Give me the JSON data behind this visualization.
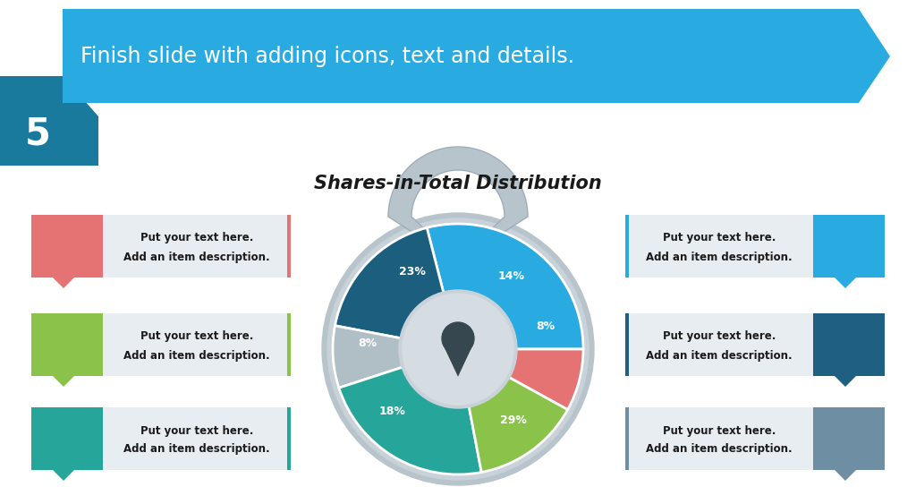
{
  "title": "Finish slide with adding icons, text and details.",
  "step_number": "5",
  "chart_title": "Shares-in-Total Distribution",
  "banner_color": "#29ABE2",
  "banner_dark_color": "#1A7A9E",
  "background_color": "#FFFFFF",
  "pie_values": [
    29,
    18,
    8,
    23,
    14,
    8
  ],
  "pie_colors": [
    "#29ABE2",
    "#1B5E7E",
    "#B0BEC5",
    "#26A69A",
    "#8BC34A",
    "#E57373"
  ],
  "pie_labels": [
    "29%",
    "18%",
    "8%",
    "23%",
    "14%",
    "8%"
  ],
  "lock_body_color": "#B0BEC5",
  "lock_inner_color": "#CFD8DC",
  "keyhole_color": "#37474F",
  "left_items": [
    {
      "icon_color": "#E57373",
      "text1": "Put your text here.",
      "text2": "Add an item description."
    },
    {
      "icon_color": "#8BC34A",
      "text1": "Put your text here.",
      "text2": "Add an item description."
    },
    {
      "icon_color": "#26A69A",
      "text1": "Put your text here.",
      "text2": "Add an item description."
    }
  ],
  "right_items": [
    {
      "icon_color": "#29ABE2",
      "text1": "Put your text here.",
      "text2": "Add an item description."
    },
    {
      "icon_color": "#1E5F82",
      "text1": "Put your text here.",
      "text2": "Add an item description."
    },
    {
      "icon_color": "#6E8FA3",
      "text1": "Put your text here.",
      "text2": "Add an item description."
    }
  ],
  "text_box_color": "#E8EDF2",
  "label_color": "#FFFFFF"
}
